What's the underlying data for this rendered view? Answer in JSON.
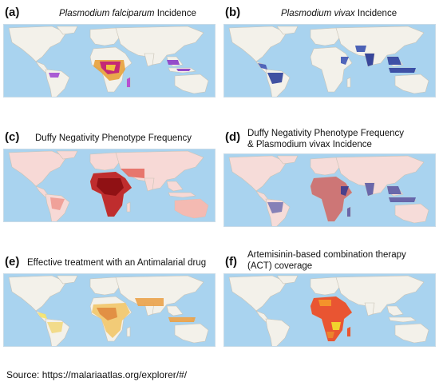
{
  "colors": {
    "ocean": "#a9d3ef",
    "land": "#f3f1ea",
    "border": "#c9c3b6"
  },
  "panels": [
    {
      "letter": "(a)",
      "title_italic": "Plasmodium falciparum",
      "title_rest": " Incidence",
      "scheme": "falciparum"
    },
    {
      "letter": "(b)",
      "title_italic": "Plasmodium vivax",
      "title_rest": " Incidence",
      "scheme": "vivax"
    },
    {
      "letter": "(c)",
      "title_line1": "Duffy Negativity Phenotype Frequency",
      "scheme": "duffy"
    },
    {
      "letter": "(d)",
      "title_line1": "Duffy Negativity Phenotype Frequency",
      "title_line2": "& Plasmodium vivax Incidence",
      "scheme": "duffyvivax"
    },
    {
      "letter": "(e)",
      "title_line1": "Effective treatment with an Antimalarial drug",
      "scheme": "treatment"
    },
    {
      "letter": "(f)",
      "title_line1": "Artemisinin-based combination therapy",
      "title_line2": "(ACT) coverage",
      "scheme": "act"
    }
  ],
  "source": "Source: https://malariaatlas.org/explorer/#/"
}
